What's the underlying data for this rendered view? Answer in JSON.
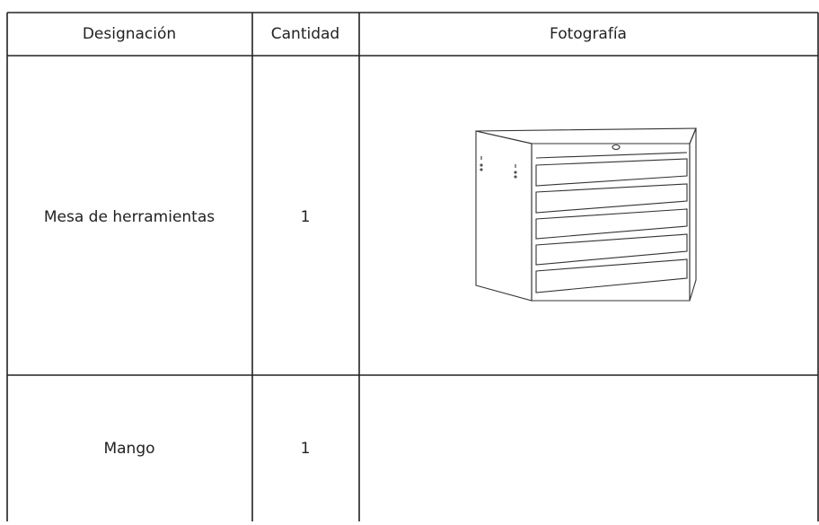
{
  "table": {
    "header": [
      "Designación",
      "Cantidad",
      "Fotografía"
    ],
    "rows": [
      [
        "Mesa de herramientas",
        1
      ],
      [
        "Mango",
        1
      ]
    ]
  }
}
